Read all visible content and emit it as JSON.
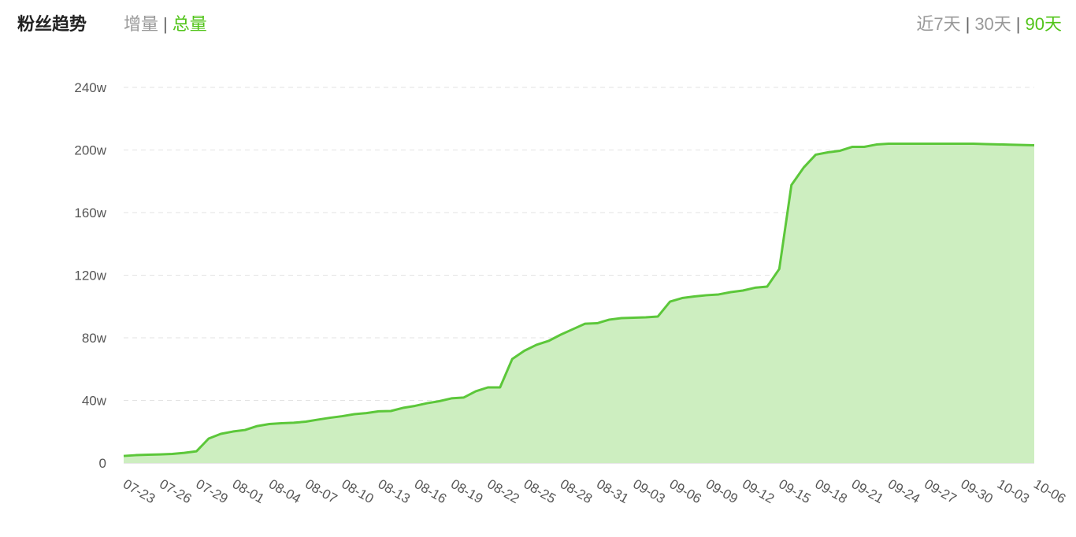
{
  "header": {
    "title": "粉丝趋势",
    "tabs": [
      "增量",
      "总量"
    ],
    "active_tab": 1,
    "separator": "|",
    "ranges": [
      "近7天",
      "30天",
      "90天"
    ],
    "active_range": 2
  },
  "chart_data": {
    "type": "area",
    "categories": [
      "07-23",
      null,
      null,
      "07-26",
      null,
      null,
      "07-29",
      null,
      null,
      "08-01",
      null,
      null,
      "08-04",
      null,
      null,
      "08-07",
      null,
      null,
      "08-10",
      null,
      null,
      "08-13",
      null,
      null,
      "08-16",
      null,
      null,
      "08-19",
      null,
      null,
      "08-22",
      null,
      null,
      "08-25",
      null,
      null,
      "08-28",
      null,
      null,
      "08-31",
      null,
      null,
      "09-03",
      null,
      null,
      "09-06",
      null,
      null,
      "09-09",
      null,
      null,
      "09-12",
      null,
      null,
      "09-15",
      null,
      null,
      "09-18",
      null,
      null,
      "09-21",
      null,
      null,
      "09-24",
      null,
      null,
      "09-27",
      null,
      null,
      "09-30",
      null,
      null,
      "10-03",
      null,
      null,
      "10-06"
    ],
    "values": [
      4.5,
      5,
      5.3,
      5.5,
      5.8,
      6.5,
      7.5,
      15.6,
      18.6,
      20.1,
      21.1,
      23.6,
      24.9,
      25.4,
      25.7,
      26.4,
      27.7,
      28.9,
      29.9,
      31.2,
      31.9,
      33,
      33.2,
      35.2,
      36.5,
      38.2,
      39.5,
      41.3,
      41.8,
      45.8,
      48.3,
      48.3,
      66.4,
      71.7,
      75.5,
      78,
      82,
      85.5,
      89,
      89.3,
      91.6,
      92.6,
      92.8,
      93.1,
      93.6,
      103.1,
      105.4,
      106.4,
      107.2,
      107.7,
      109.2,
      110.2,
      112,
      112.7,
      124,
      177.6,
      188.7,
      197,
      198.5,
      199.5,
      202,
      202,
      203.5,
      204,
      204,
      204,
      204,
      204,
      204,
      204,
      204,
      203.8,
      203.6,
      203.4,
      203.2,
      203
    ],
    "color": "#5cc73a",
    "fill_color": "#cdeec0",
    "ylim": [
      0,
      240
    ],
    "yticks": [
      0,
      {
        "value": 40,
        "label": "40w"
      },
      {
        "value": 80,
        "label": "80w"
      },
      {
        "value": 120,
        "label": "120w"
      },
      {
        "value": 160,
        "label": "160w"
      },
      {
        "value": 200,
        "label": "200w"
      },
      {
        "value": 240,
        "label": "240w"
      }
    ],
    "grid": true
  }
}
